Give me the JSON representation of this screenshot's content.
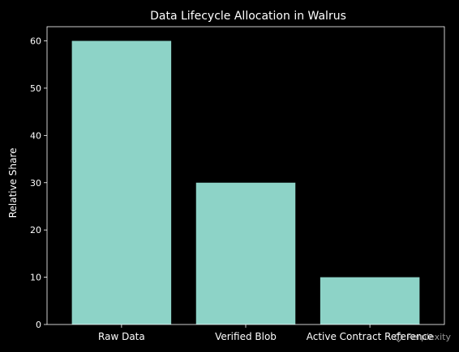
{
  "chart_data": {
    "type": "bar",
    "title": "Data Lifecycle Allocation in Walrus",
    "xlabel": "",
    "ylabel": "Relative Share",
    "categories": [
      "Raw Data",
      "Verified Blob",
      "Active Contract Reference"
    ],
    "values": [
      60,
      30,
      10
    ],
    "ylim": [
      0,
      63
    ],
    "yticks": [
      0,
      10,
      20,
      30,
      40,
      50,
      60
    ],
    "grid": false,
    "bar_color": "#8dd3c7",
    "background": "#000000",
    "text_color": "#ffffff"
  },
  "watermark": {
    "text": "Perplexity"
  }
}
